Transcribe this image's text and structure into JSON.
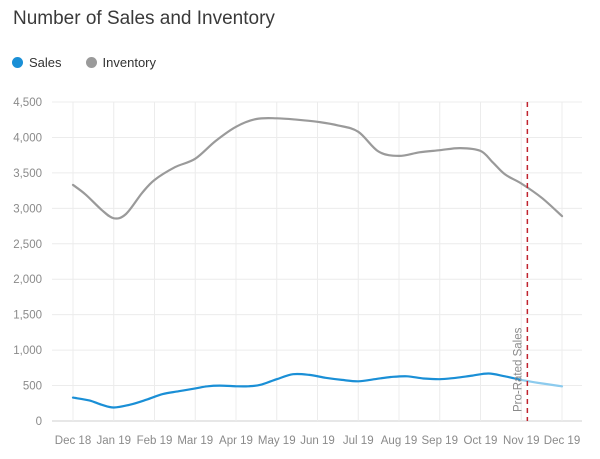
{
  "chart_data": {
    "type": "line",
    "title": "Number of Sales and Inventory",
    "xlabel": "",
    "ylabel": "",
    "ylim": [
      0,
      4500
    ],
    "yticks": [
      0,
      500,
      1000,
      1500,
      2000,
      2500,
      3000,
      3500,
      4000,
      4500
    ],
    "ytick_labels": [
      "0",
      "500",
      "1,000",
      "1,500",
      "2,000",
      "2,500",
      "3,000",
      "3,500",
      "4,000",
      "4,500"
    ],
    "categories": [
      "Dec 18",
      "Jan 19",
      "Feb 19",
      "Mar 19",
      "Apr 19",
      "May 19",
      "Jun 19",
      "Jul 19",
      "Aug 19",
      "Sep 19",
      "Oct 19",
      "Nov 19",
      "Dec 19"
    ],
    "legend": [
      "Sales",
      "Inventory"
    ],
    "series": [
      {
        "name": "Sales",
        "color": "#1a8fd6",
        "x": [
          0,
          0.4,
          0.7,
          1.0,
          1.4,
          1.8,
          2.2,
          2.6,
          3.0,
          3.3,
          3.6,
          4.0,
          4.3,
          4.6,
          5.0,
          5.4,
          5.8,
          6.2,
          6.6,
          7.0,
          7.4,
          7.8,
          8.2,
          8.6,
          9.0,
          9.4,
          9.8,
          10.2,
          10.6,
          11.0
        ],
        "values": [
          330,
          290,
          230,
          190,
          230,
          300,
          380,
          420,
          460,
          490,
          500,
          490,
          490,
          510,
          590,
          660,
          650,
          610,
          580,
          560,
          590,
          620,
          630,
          600,
          590,
          610,
          640,
          670,
          630,
          580
        ]
      },
      {
        "name": "Sales (Pro-Rated)",
        "color": "#8ccbee",
        "x": [
          11.0,
          11.5,
          12.0
        ],
        "values": [
          580,
          530,
          490
        ]
      },
      {
        "name": "Inventory",
        "color": "#9a9a9a",
        "x": [
          0,
          0.3,
          0.7,
          1.0,
          1.3,
          1.7,
          2.0,
          2.5,
          3.0,
          3.5,
          4.0,
          4.5,
          5.0,
          5.5,
          6.0,
          6.5,
          7.0,
          7.5,
          8.0,
          8.5,
          9.0,
          9.5,
          10.0,
          10.3,
          10.6,
          11.0,
          11.5,
          12.0
        ],
        "values": [
          3330,
          3200,
          2980,
          2860,
          2920,
          3220,
          3400,
          3580,
          3700,
          3950,
          4150,
          4260,
          4270,
          4250,
          4220,
          4170,
          4080,
          3800,
          3740,
          3790,
          3820,
          3850,
          3810,
          3650,
          3480,
          3350,
          3150,
          2890
        ]
      }
    ],
    "annotations": [
      {
        "type": "vline",
        "x": 11.15,
        "style": "dashed",
        "color": "#c0232e",
        "label": "Pro-Rated Sales"
      }
    ]
  }
}
